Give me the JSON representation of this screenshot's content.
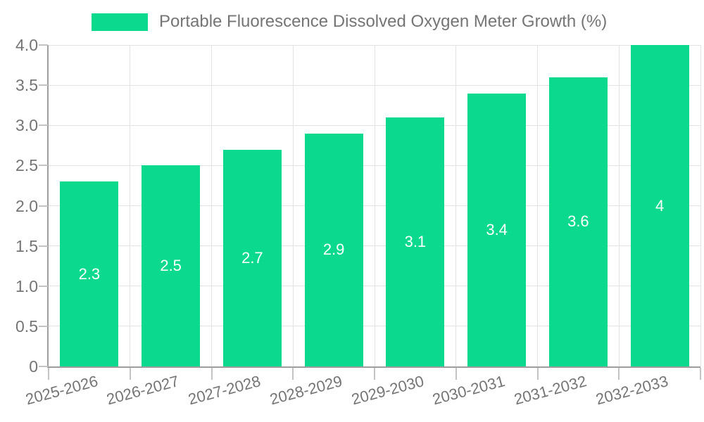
{
  "legend": {
    "label": "Portable Fluorescence Dissolved Oxygen Meter Growth (%)"
  },
  "chart_data": {
    "type": "bar",
    "title": "Portable Fluorescence Dissolved Oxygen Meter Growth (%)",
    "categories": [
      "2025-2026",
      "2026-2027",
      "2027-2028",
      "2028-2029",
      "2029-2030",
      "2030-2031",
      "2031-2032",
      "2032-2033"
    ],
    "values": [
      2.3,
      2.5,
      2.7,
      2.9,
      3.1,
      3.4,
      3.6,
      4
    ],
    "value_labels": [
      "2.3",
      "2.5",
      "2.7",
      "2.9",
      "3.1",
      "3.4",
      "3.6",
      "4"
    ],
    "xlabel": "",
    "ylabel": "",
    "ylim": [
      0,
      4
    ],
    "ytick_step": 0.5,
    "ytick_labels": [
      "0",
      "0.5",
      "1.0",
      "1.5",
      "2.0",
      "2.5",
      "3.0",
      "3.5",
      "4.0"
    ],
    "grid": "both",
    "legend_position": "top",
    "colors": {
      "bar": "#0bd98d",
      "axis": "#9e9e9e",
      "grid": "#e2e2e2",
      "tick": "#c4c4c4",
      "text": "#757575",
      "value_text": "#ffffff",
      "background": "#ffffff"
    }
  }
}
